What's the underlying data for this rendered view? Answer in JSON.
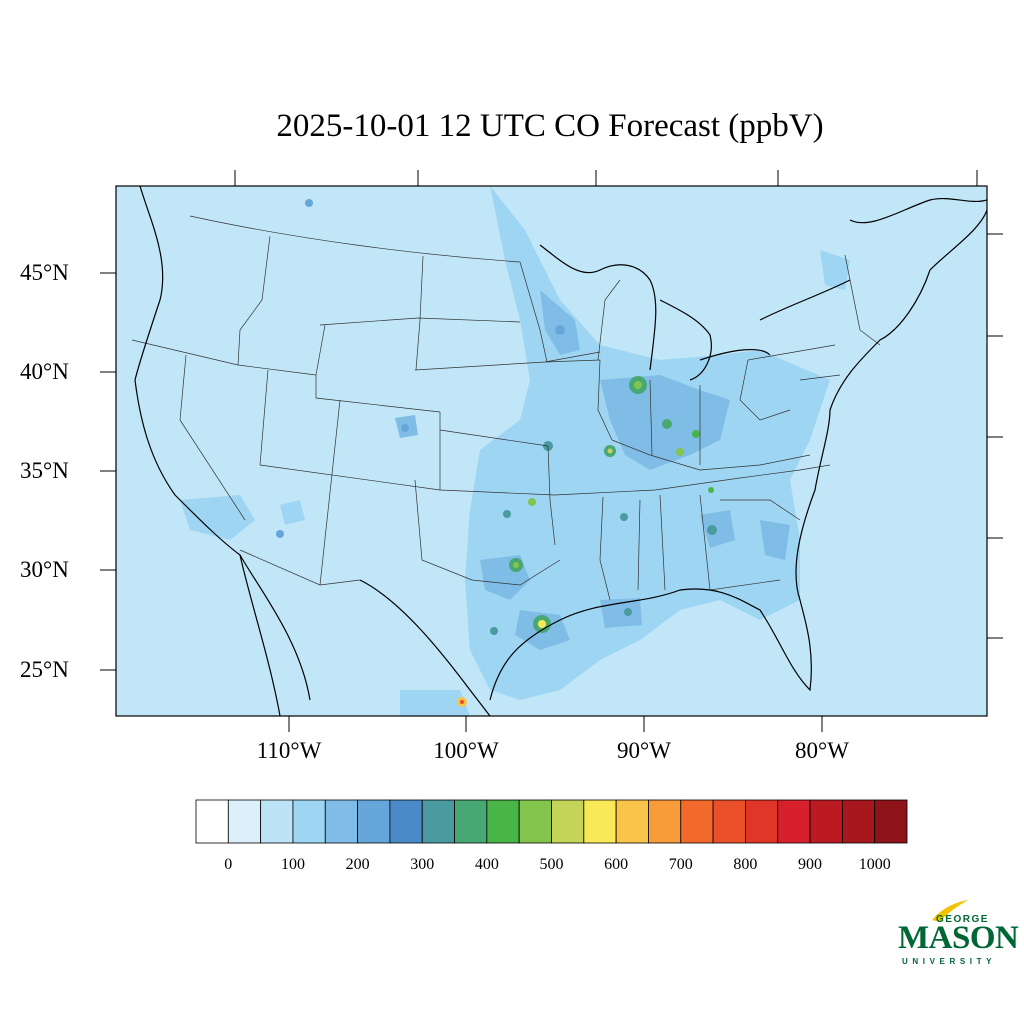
{
  "title": "2025-10-01 12 UTC CO Forecast (ppbV)",
  "map": {
    "lat_ticks": [
      "45°N",
      "40°N",
      "35°N",
      "30°N",
      "25°N"
    ],
    "lon_ticks": [
      "110°W",
      "100°W",
      "90°W",
      "80°W"
    ],
    "background_color": "#c0e6f8"
  },
  "colorbar": {
    "labels": [
      "0",
      "100",
      "200",
      "300",
      "400",
      "500",
      "600",
      "700",
      "800",
      "900",
      "1000"
    ],
    "colors": [
      "#ffffff",
      "#dcf0fa",
      "#bde4f6",
      "#9ed5f2",
      "#80bde6",
      "#67a6da",
      "#4a8ac8",
      "#4a9aa0",
      "#48a873",
      "#49b448",
      "#82c44c",
      "#c3d459",
      "#f9e858",
      "#f8c44a",
      "#f89b3b",
      "#f26a2c",
      "#e9502a",
      "#e03529",
      "#d6202b",
      "#bc1a22",
      "#a6181e",
      "#8e141a"
    ]
  },
  "logo": {
    "line1": "GEORGE",
    "line2": "MASON",
    "line3": "UNIVERSITY"
  }
}
